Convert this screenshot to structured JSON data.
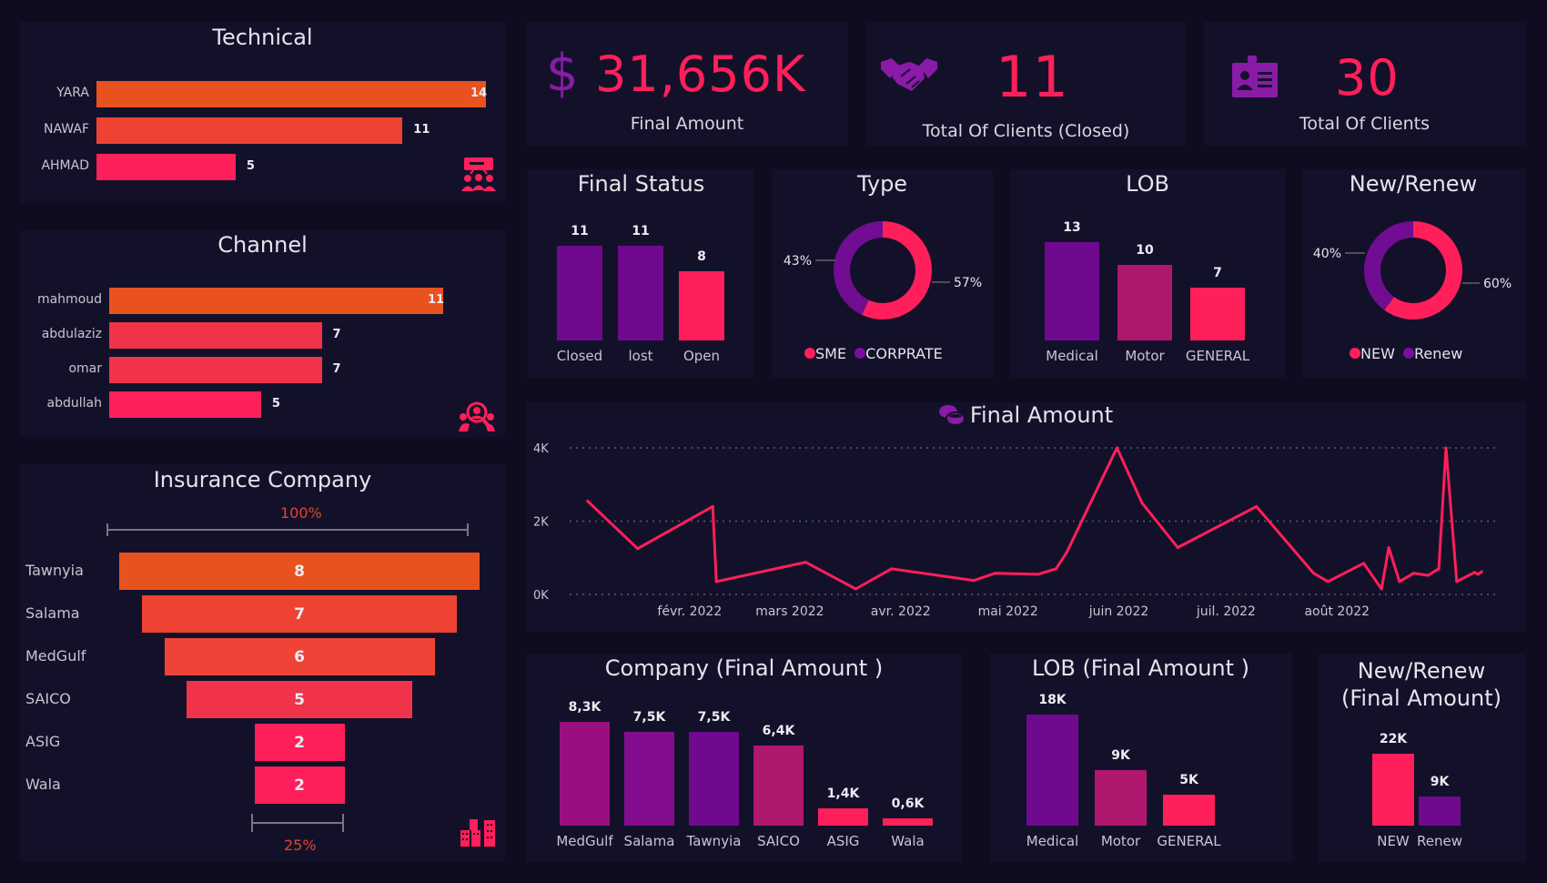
{
  "colors": {
    "background": "#0e0c1e",
    "panel": "#13112a",
    "pink": "#ff1f5a",
    "purple": "#6f0a8f",
    "magenta": "#b0176f",
    "orange": "#e8521f",
    "orange_red": "#ee4333",
    "red": "#f1334a"
  },
  "technical": {
    "title": "Technical",
    "icon": "presentation-group-icon",
    "items": [
      {
        "label": "YARA",
        "value": "14"
      },
      {
        "label": "NAWAF",
        "value": "11"
      },
      {
        "label": "AHMAD",
        "value": "5"
      }
    ]
  },
  "channel": {
    "title": "Channel",
    "icon": "user-search-icon",
    "items": [
      {
        "label": "mahmoud",
        "value": "11"
      },
      {
        "label": "abdulaziz",
        "value": "7"
      },
      {
        "label": "omar",
        "value": "7"
      },
      {
        "label": "abdullah",
        "value": "5"
      }
    ]
  },
  "insurance": {
    "title": "Insurance Company",
    "top_pct": "100%",
    "bottom_pct": "25%",
    "icon": "buildings-icon",
    "items": [
      {
        "label": "Tawnyia",
        "value": "8"
      },
      {
        "label": "Salama",
        "value": "7"
      },
      {
        "label": "MedGulf",
        "value": "6"
      },
      {
        "label": "SAICO",
        "value": "5"
      },
      {
        "label": "ASIG",
        "value": "2"
      },
      {
        "label": "Wala",
        "value": "2"
      }
    ]
  },
  "kpis": [
    {
      "value": "31,656K",
      "label": "Final Amount",
      "icon": "dollar-icon",
      "icon_glyph": "$"
    },
    {
      "value": "11",
      "label": "Total Of Clients (Closed)",
      "icon": "handshake-icon"
    },
    {
      "value": "30",
      "label": "Total Of Clients",
      "icon": "id-badge-icon"
    }
  ],
  "final_status": {
    "title": "Final Status",
    "items": [
      {
        "label": "Closed",
        "value": "11"
      },
      {
        "label": "lost",
        "value": "11"
      },
      {
        "label": "Open",
        "value": "8"
      }
    ]
  },
  "type": {
    "title": "Type",
    "slices": [
      {
        "label": "SME",
        "pct": "57%"
      },
      {
        "label": "CORPRATE",
        "pct": "43%"
      }
    ]
  },
  "lob": {
    "title": "LOB",
    "items": [
      {
        "label": "Medical",
        "value": "13"
      },
      {
        "label": "Motor",
        "value": "10"
      },
      {
        "label": "GENERAL",
        "value": "7"
      }
    ]
  },
  "new_renew": {
    "title": "New/Renew",
    "slices": [
      {
        "label": "NEW",
        "pct": "60%"
      },
      {
        "label": "Renew",
        "pct": "40%"
      }
    ]
  },
  "line": {
    "title": "Final Amount",
    "icon": "coins-icon",
    "yticks": [
      "4K",
      "2K",
      "0K"
    ],
    "xticks": [
      "févr. 2022",
      "mars 2022",
      "avr. 2022",
      "mai 2022",
      "juin 2022",
      "juil. 2022",
      "août 2022"
    ]
  },
  "company_fa": {
    "title": "Company (Final Amount )",
    "items": [
      {
        "label": "MedGulf",
        "value": "8,3K"
      },
      {
        "label": "Salama",
        "value": "7,5K"
      },
      {
        "label": "Tawnyia",
        "value": "7,5K"
      },
      {
        "label": "SAICO",
        "value": "6,4K"
      },
      {
        "label": "ASIG",
        "value": "1,4K"
      },
      {
        "label": "Wala",
        "value": "0,6K"
      }
    ]
  },
  "lob_fa": {
    "title": "LOB (Final Amount )",
    "items": [
      {
        "label": "Medical",
        "value": "18K"
      },
      {
        "label": "Motor",
        "value": "9K"
      },
      {
        "label": "GENERAL",
        "value": "5K"
      }
    ]
  },
  "nr_fa": {
    "title_line1": "New/Renew",
    "title_line2": "(Final Amount)",
    "items": [
      {
        "label": "NEW",
        "value": "22K"
      },
      {
        "label": "Renew",
        "value": "9K"
      }
    ]
  },
  "chart_data": [
    {
      "type": "bar",
      "title": "Technical",
      "orientation": "horizontal",
      "categories": [
        "YARA",
        "NAWAF",
        "AHMAD"
      ],
      "values": [
        14,
        11,
        5
      ]
    },
    {
      "type": "bar",
      "title": "Channel",
      "orientation": "horizontal",
      "categories": [
        "mahmoud",
        "abdulaziz",
        "omar",
        "abdullah"
      ],
      "values": [
        11,
        7,
        7,
        5
      ]
    },
    {
      "type": "bar",
      "title": "Insurance Company",
      "subtype": "funnel",
      "categories": [
        "Tawnyia",
        "Salama",
        "MedGulf",
        "SAICO",
        "ASIG",
        "Wala"
      ],
      "values": [
        8,
        7,
        6,
        5,
        2,
        2
      ],
      "annotations": [
        "100%",
        "25%"
      ]
    },
    {
      "type": "bar",
      "title": "Final Status",
      "categories": [
        "Closed",
        "lost",
        "Open"
      ],
      "values": [
        11,
        11,
        8
      ]
    },
    {
      "type": "pie",
      "subtype": "donut",
      "title": "Type",
      "categories": [
        "SME",
        "CORPRATE"
      ],
      "values": [
        57,
        43
      ],
      "legend": "bottom"
    },
    {
      "type": "bar",
      "title": "LOB",
      "categories": [
        "Medical",
        "Motor",
        "GENERAL"
      ],
      "values": [
        13,
        10,
        7
      ]
    },
    {
      "type": "pie",
      "subtype": "donut",
      "title": "New/Renew",
      "categories": [
        "NEW",
        "Renew"
      ],
      "values": [
        60,
        40
      ],
      "legend": "bottom"
    },
    {
      "type": "line",
      "title": "Final Amount",
      "xlabel": "",
      "ylabel": "",
      "ylim": [
        0,
        4000
      ],
      "yticks": [
        "0K",
        "2K",
        "4K"
      ],
      "grid": true,
      "xticks": [
        "févr. 2022",
        "mars 2022",
        "avr. 2022",
        "mai 2022",
        "juin 2022",
        "juil. 2022",
        "août 2022"
      ],
      "x": [
        "2022-01-06",
        "2022-01-20",
        "2022-02-10",
        "2022-02-11",
        "2022-03-08",
        "2022-03-22",
        "2022-04-01",
        "2022-04-24",
        "2022-04-30",
        "2022-05-12",
        "2022-05-17",
        "2022-05-20",
        "2022-06-03",
        "2022-06-10",
        "2022-06-20",
        "2022-07-12",
        "2022-07-28",
        "2022-08-01",
        "2022-08-11",
        "2022-08-16",
        "2022-08-18",
        "2022-08-21",
        "2022-08-25",
        "2022-08-29",
        "2022-09-01",
        "2022-09-03",
        "2022-09-06",
        "2022-09-11",
        "2022-09-12",
        "2022-09-13"
      ],
      "values": [
        2550,
        1250,
        2400,
        350,
        880,
        150,
        700,
        380,
        580,
        550,
        700,
        1150,
        4000,
        2500,
        1280,
        2400,
        580,
        350,
        850,
        150,
        1280,
        350,
        580,
        520,
        700,
        4000,
        350,
        600,
        550,
        620
      ]
    },
    {
      "type": "bar",
      "title": "Company (Final Amount )",
      "categories": [
        "MedGulf",
        "Salama",
        "Tawnyia",
        "SAICO",
        "ASIG",
        "Wala"
      ],
      "values": [
        8300,
        7500,
        7500,
        6400,
        1400,
        600
      ]
    },
    {
      "type": "bar",
      "title": "LOB (Final Amount )",
      "categories": [
        "Medical",
        "Motor",
        "GENERAL"
      ],
      "values": [
        18000,
        9000,
        5000
      ]
    },
    {
      "type": "bar",
      "title": "New/Renew (Final Amount)",
      "categories": [
        "NEW",
        "Renew"
      ],
      "values": [
        22000,
        9000
      ]
    }
  ]
}
